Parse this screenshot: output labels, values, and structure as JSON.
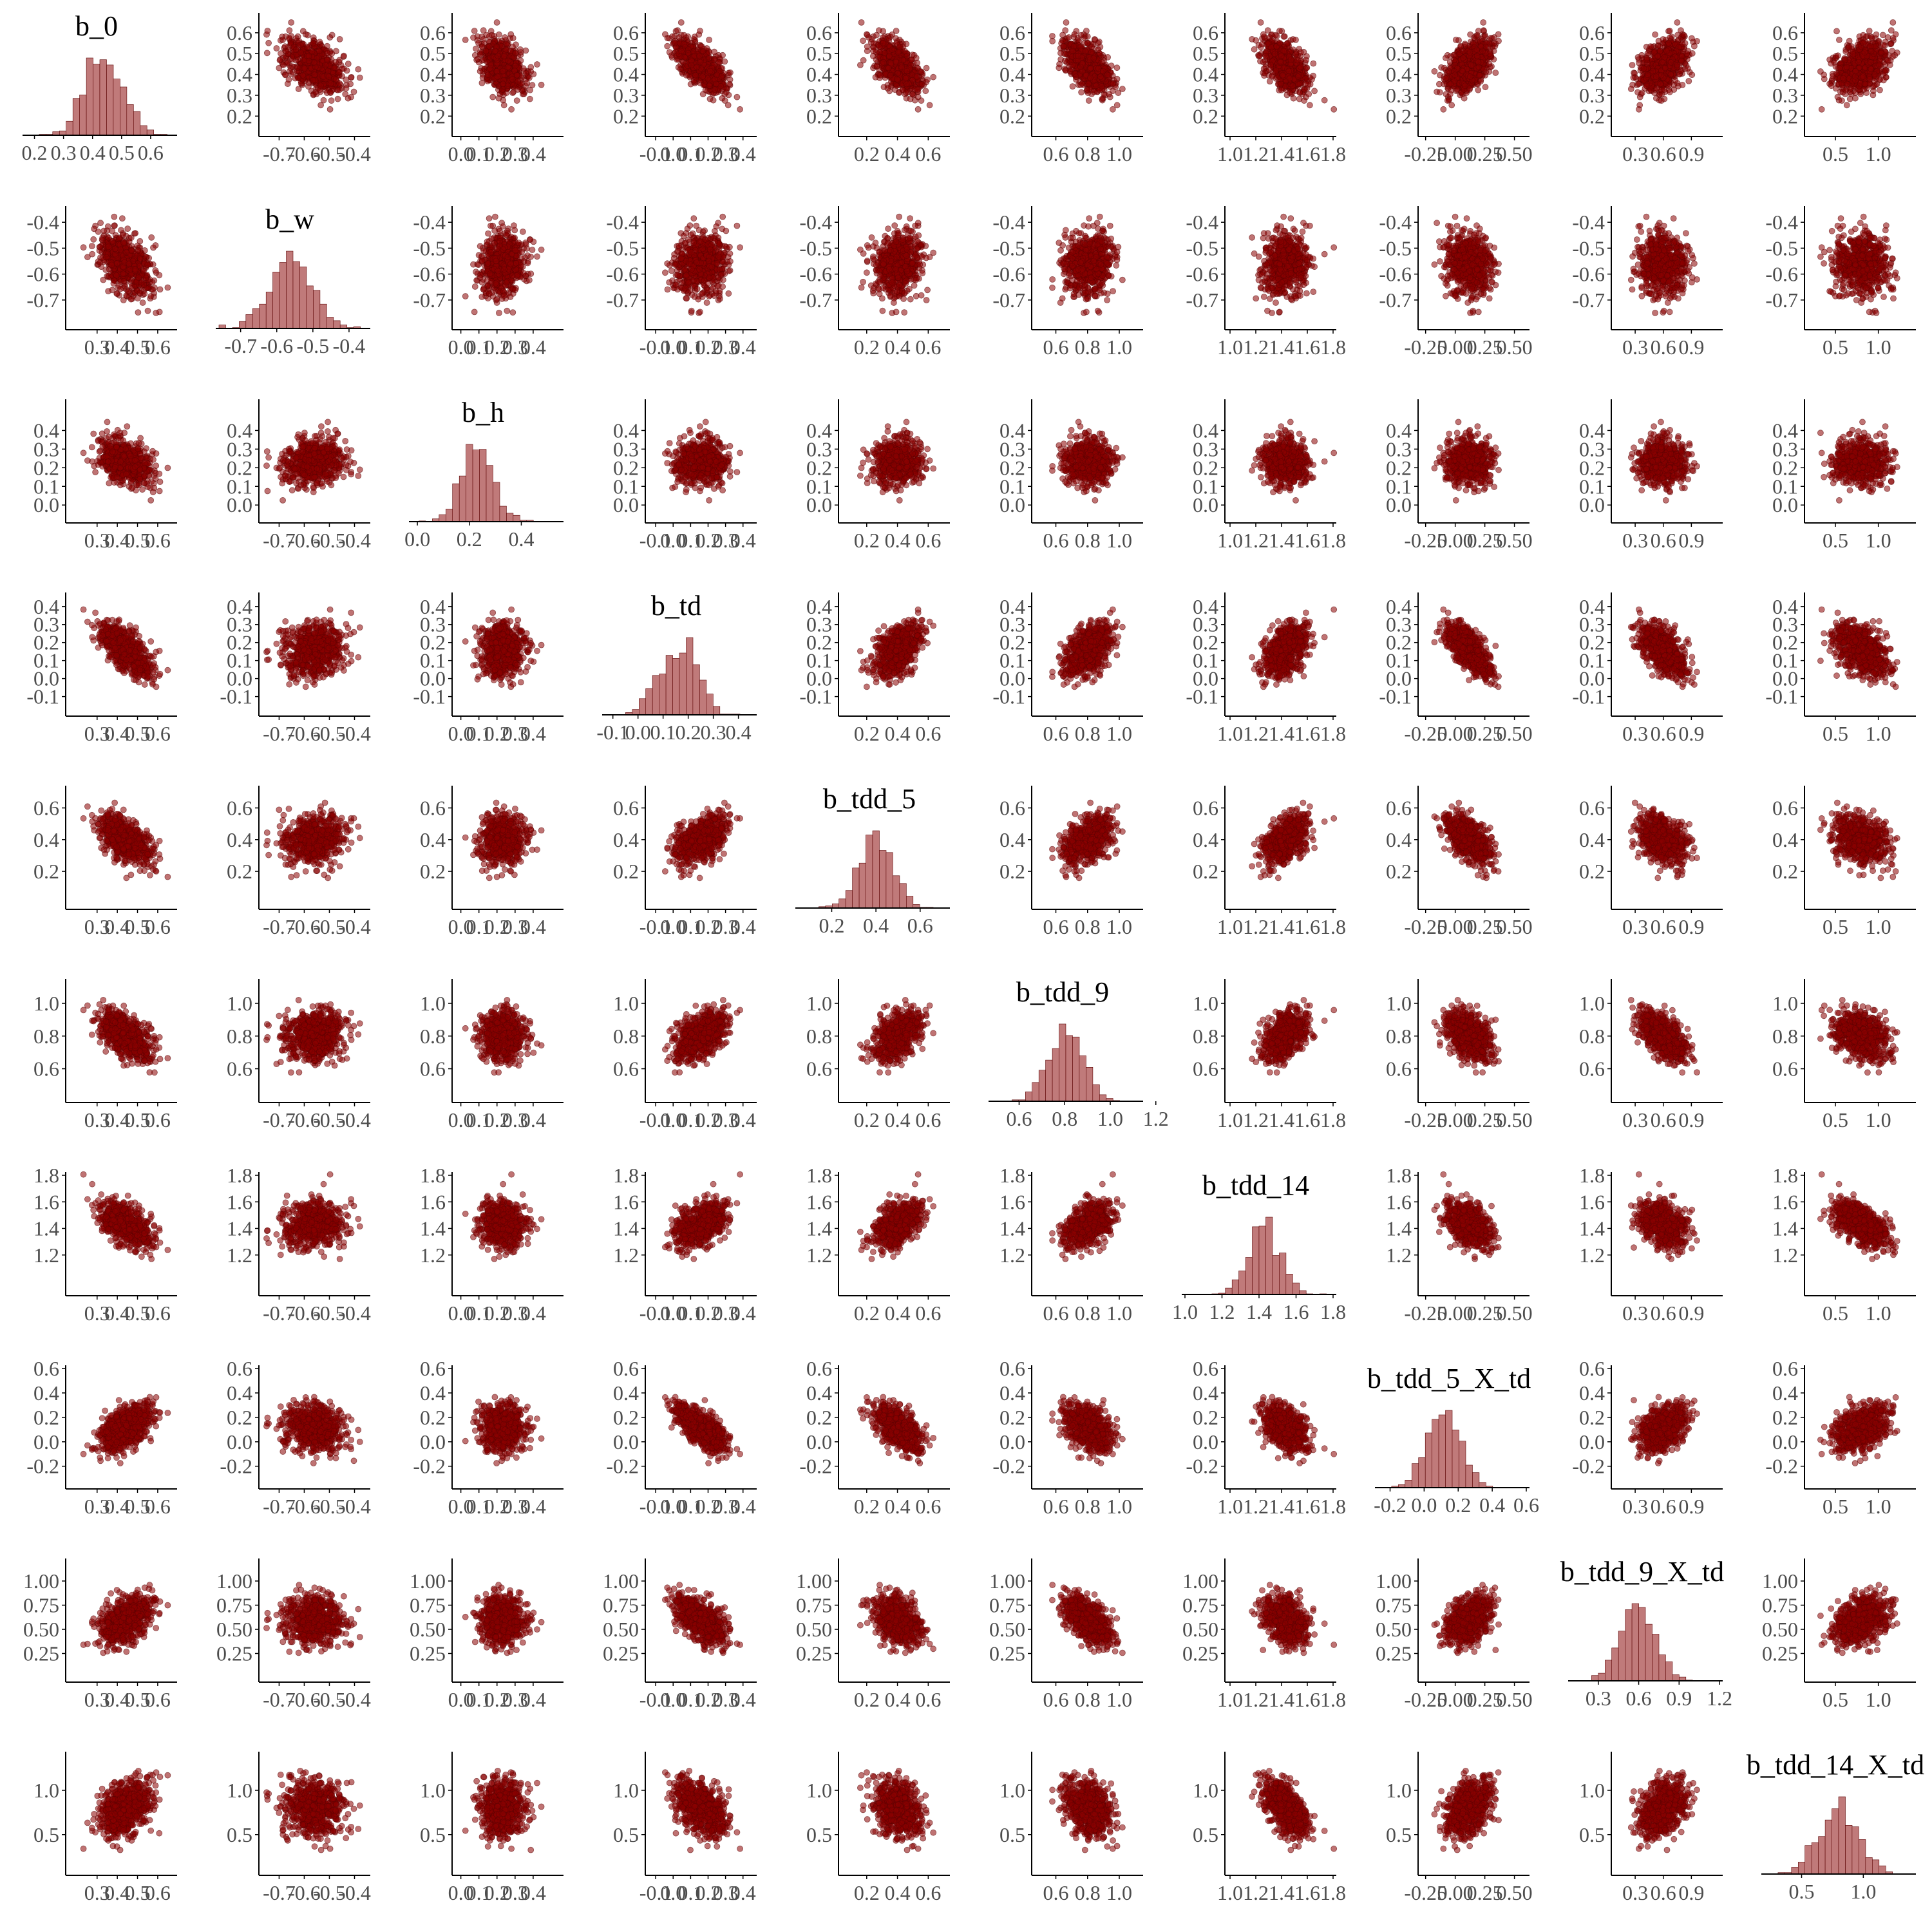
{
  "chart_data": {
    "type": "scatter",
    "layout": "pairs-plot-matrix",
    "diagonal_type": "histogram",
    "grid": false,
    "colors": {
      "points": "#8B0000",
      "point_outline": "#5a0000",
      "histogram": "#c07a7a",
      "axis": "#000000"
    },
    "parameters": [
      {
        "name": "b_0",
        "mean": 0.44,
        "sd": 0.07,
        "range": [
          0.17,
          0.68
        ],
        "ticks": [
          "0.2",
          "0.3",
          "0.4",
          "0.5",
          "0.6"
        ],
        "ticks_row": [
          "0.2",
          "0.3",
          "0.4",
          "0.5",
          "0.6"
        ],
        "ticks_col": [
          "0.3",
          "0.4",
          "0.5",
          "0.6"
        ]
      },
      {
        "name": "b_w",
        "mean": -0.56,
        "sd": 0.06,
        "range": [
          -0.76,
          -0.35
        ],
        "ticks": [
          "-0.7",
          "-0.6",
          "-0.5",
          "-0.4"
        ],
        "ticks_row": [
          "-0.7",
          "-0.6",
          "-0.5",
          "-0.4"
        ],
        "ticks_col": [
          "-0.7",
          "-0.6",
          "-0.5",
          "-0.4"
        ]
      },
      {
        "name": "b_h",
        "mean": 0.23,
        "sd": 0.06,
        "range": [
          -0.02,
          0.55
        ],
        "ticks": [
          "0.0",
          "0.2",
          "0.4"
        ],
        "ticks_row": [
          "0.0",
          "0.1",
          "0.2",
          "0.3",
          "0.4"
        ],
        "ticks_col": [
          "0.0",
          "0.1",
          "0.2",
          "0.3",
          "0.4"
        ]
      },
      {
        "name": "b_td",
        "mean": 0.16,
        "sd": 0.08,
        "range": [
          -0.13,
          0.46
        ],
        "ticks": [
          "-0.1",
          "0.0",
          "0.1",
          "0.2",
          "0.3",
          "0.4"
        ],
        "ticks_row": [
          "-0.1",
          "0.0",
          "0.1",
          "0.2",
          "0.3",
          "0.4"
        ],
        "ticks_col": [
          "-0.1",
          "0.0",
          "0.1",
          "0.2",
          "0.3",
          "0.4"
        ]
      },
      {
        "name": "b_tdd_5",
        "mean": 0.4,
        "sd": 0.08,
        "range": [
          0.05,
          0.72
        ],
        "ticks": [
          "0.2",
          "0.4",
          "0.6"
        ],
        "ticks_row": [
          "0.2",
          "0.4",
          "0.6"
        ],
        "ticks_col": [
          "0.2",
          "0.4",
          "0.6"
        ]
      },
      {
        "name": "b_tdd_9",
        "mean": 0.8,
        "sd": 0.08,
        "range": [
          0.48,
          1.13
        ],
        "ticks": [
          "0.6",
          "0.8",
          "1.0",
          "1.2"
        ],
        "ticks_row": [
          "0.6",
          "0.8",
          "1.0"
        ],
        "ticks_col": [
          "0.6",
          "0.8",
          "1.0"
        ]
      },
      {
        "name": "b_tdd_14",
        "mean": 1.43,
        "sd": 0.09,
        "range": [
          1.0,
          1.8
        ],
        "ticks": [
          "1.0",
          "1.2",
          "1.4",
          "1.6",
          "1.8"
        ],
        "ticks_row": [
          "1.2",
          "1.4",
          "1.6",
          "1.8"
        ],
        "ticks_col": [
          "1.0",
          "1.2",
          "1.4",
          "1.6",
          "1.8"
        ]
      },
      {
        "name": "b_tdd_5_X_td",
        "mean": 0.12,
        "sd": 0.1,
        "range": [
          -0.27,
          0.6
        ],
        "ticks": [
          "-0.2",
          "0.0",
          "0.2",
          "0.4",
          "0.6"
        ],
        "ticks_row": [
          "-0.2",
          "0.0",
          "0.2",
          "0.4",
          "0.6"
        ],
        "ticks_col": [
          "-0.25",
          "0.00",
          "0.25",
          "0.50"
        ]
      },
      {
        "name": "b_tdd_9_X_td",
        "mean": 0.6,
        "sd": 0.13,
        "range": [
          0.1,
          1.2
        ],
        "ticks": [
          "0.3",
          "0.6",
          "0.9",
          "1.2"
        ],
        "ticks_row": [
          "0.25",
          "0.50",
          "0.75",
          "1.00"
        ],
        "ticks_col": [
          "0.3",
          "0.6",
          "0.9"
        ]
      },
      {
        "name": "b_tdd_14_X_td",
        "mean": 0.8,
        "sd": 0.16,
        "range": [
          0.2,
          1.4
        ],
        "ticks": [
          "0.5",
          "1.0"
        ],
        "ticks_row": [
          "0.5",
          "1.0"
        ],
        "ticks_col": [
          "0.5",
          "1.0"
        ]
      }
    ],
    "correlations": [
      [
        1.0,
        -0.4,
        -0.4,
        -0.7,
        -0.6,
        -0.6,
        -0.6,
        0.5,
        0.5,
        0.4
      ],
      [
        -0.4,
        1.0,
        0.15,
        0.1,
        0.1,
        0.1,
        0.05,
        -0.05,
        -0.05,
        0.0
      ],
      [
        -0.4,
        0.15,
        1.0,
        0.1,
        0.1,
        0.05,
        0.05,
        -0.05,
        -0.05,
        -0.05
      ],
      [
        -0.7,
        0.1,
        0.1,
        1.0,
        0.5,
        0.5,
        0.45,
        -0.7,
        -0.6,
        -0.45
      ],
      [
        -0.6,
        0.1,
        0.1,
        0.5,
        1.0,
        0.5,
        0.5,
        -0.6,
        -0.4,
        -0.3
      ],
      [
        -0.6,
        0.1,
        0.05,
        0.5,
        0.5,
        1.0,
        0.5,
        -0.4,
        -0.6,
        -0.3
      ],
      [
        -0.6,
        0.05,
        0.05,
        0.45,
        0.5,
        0.5,
        1.0,
        -0.4,
        -0.4,
        -0.6
      ],
      [
        0.5,
        -0.05,
        -0.05,
        -0.7,
        -0.6,
        -0.4,
        -0.4,
        1.0,
        0.4,
        0.4
      ],
      [
        0.5,
        -0.05,
        -0.05,
        -0.6,
        -0.4,
        -0.6,
        -0.4,
        0.4,
        1.0,
        0.35
      ],
      [
        0.4,
        0.0,
        -0.05,
        -0.45,
        -0.3,
        -0.3,
        -0.6,
        0.4,
        0.35,
        1.0
      ]
    ],
    "points_per_panel": 650
  }
}
